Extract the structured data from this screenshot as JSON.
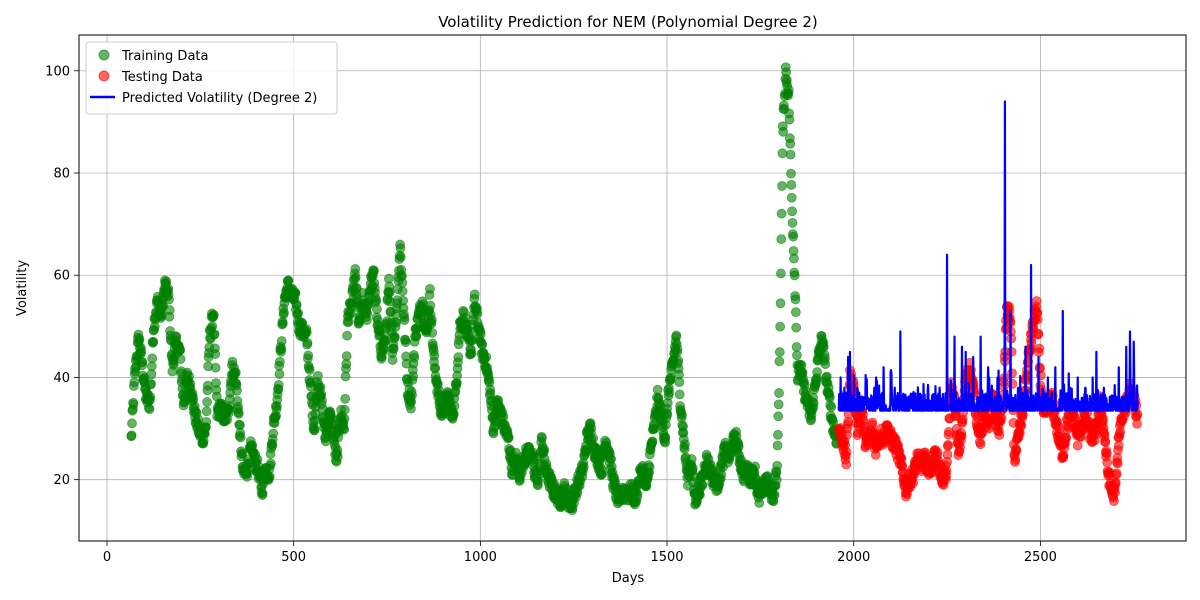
{
  "chart_data": {
    "type": "scatter",
    "title": "Volatility Prediction for NEM (Polynomial Degree 2)",
    "xlabel": "Days",
    "ylabel": "Volatility",
    "xlim": [
      -75,
      2890
    ],
    "ylim": [
      8,
      107
    ],
    "xticks": [
      0,
      500,
      1000,
      1500,
      2000,
      2500
    ],
    "yticks": [
      20,
      40,
      60,
      80,
      100
    ],
    "grid": true,
    "legend_position": "top-left",
    "colors": {
      "training": "#008000",
      "testing": "#ff0000",
      "predicted": "#0000ff"
    },
    "series": [
      {
        "name": "Training Data",
        "kind": "scatter",
        "x_range": [
          65,
          1955
        ],
        "anchors": [
          [
            65,
            28
          ],
          [
            75,
            41
          ],
          [
            85,
            48
          ],
          [
            95,
            42
          ],
          [
            105,
            36
          ],
          [
            115,
            35
          ],
          [
            125,
            50
          ],
          [
            135,
            55
          ],
          [
            145,
            52
          ],
          [
            155,
            58
          ],
          [
            165,
            56
          ],
          [
            175,
            42
          ],
          [
            185,
            47
          ],
          [
            195,
            45
          ],
          [
            205,
            35
          ],
          [
            215,
            40
          ],
          [
            225,
            38
          ],
          [
            235,
            33
          ],
          [
            245,
            30
          ],
          [
            255,
            28
          ],
          [
            265,
            30
          ],
          [
            275,
            48
          ],
          [
            285,
            53
          ],
          [
            295,
            33
          ],
          [
            305,
            34
          ],
          [
            315,
            32
          ],
          [
            325,
            33
          ],
          [
            335,
            42
          ],
          [
            345,
            40
          ],
          [
            355,
            30
          ],
          [
            365,
            21
          ],
          [
            375,
            22
          ],
          [
            385,
            26
          ],
          [
            395,
            24
          ],
          [
            405,
            22
          ],
          [
            415,
            18
          ],
          [
            425,
            22
          ],
          [
            435,
            21
          ],
          [
            445,
            30
          ],
          [
            455,
            35
          ],
          [
            465,
            45
          ],
          [
            475,
            55
          ],
          [
            485,
            58
          ],
          [
            495,
            56
          ],
          [
            505,
            55
          ],
          [
            515,
            50
          ],
          [
            525,
            49
          ],
          [
            535,
            48
          ],
          [
            545,
            38
          ],
          [
            555,
            30
          ],
          [
            565,
            40
          ],
          [
            575,
            35
          ],
          [
            585,
            28
          ],
          [
            595,
            33
          ],
          [
            605,
            30
          ],
          [
            615,
            23
          ],
          [
            625,
            33
          ],
          [
            635,
            30
          ],
          [
            645,
            52
          ],
          [
            655,
            54
          ],
          [
            665,
            60
          ],
          [
            675,
            50
          ],
          [
            685,
            55
          ],
          [
            695,
            52
          ],
          [
            705,
            58
          ],
          [
            715,
            60
          ],
          [
            725,
            50
          ],
          [
            735,
            45
          ],
          [
            745,
            47
          ],
          [
            755,
            58
          ],
          [
            765,
            45
          ],
          [
            775,
            52
          ],
          [
            785,
            66
          ],
          [
            795,
            53
          ],
          [
            805,
            38
          ],
          [
            815,
            35
          ],
          [
            825,
            48
          ],
          [
            835,
            52
          ],
          [
            845,
            55
          ],
          [
            855,
            48
          ],
          [
            865,
            56
          ],
          [
            875,
            44
          ],
          [
            885,
            38
          ],
          [
            895,
            33
          ],
          [
            905,
            35
          ],
          [
            915,
            36
          ],
          [
            925,
            32
          ],
          [
            935,
            38
          ],
          [
            945,
            50
          ],
          [
            955,
            52
          ],
          [
            965,
            48
          ],
          [
            975,
            45
          ],
          [
            985,
            55
          ],
          [
            995,
            50
          ],
          [
            1005,
            45
          ],
          [
            1015,
            43
          ],
          [
            1025,
            38
          ],
          [
            1035,
            30
          ],
          [
            1045,
            35
          ],
          [
            1055,
            33
          ],
          [
            1065,
            30
          ],
          [
            1075,
            28
          ],
          [
            1085,
            22
          ],
          [
            1095,
            24
          ],
          [
            1105,
            21
          ],
          [
            1115,
            24
          ],
          [
            1125,
            25
          ],
          [
            1135,
            26
          ],
          [
            1145,
            21
          ],
          [
            1155,
            20
          ],
          [
            1165,
            28
          ],
          [
            1175,
            22
          ],
          [
            1185,
            20
          ],
          [
            1195,
            18
          ],
          [
            1205,
            17
          ],
          [
            1215,
            16
          ],
          [
            1225,
            18
          ],
          [
            1235,
            16
          ],
          [
            1245,
            15
          ],
          [
            1255,
            18
          ],
          [
            1265,
            20
          ],
          [
            1275,
            22
          ],
          [
            1285,
            28
          ],
          [
            1295,
            30
          ],
          [
            1305,
            26
          ],
          [
            1315,
            24
          ],
          [
            1325,
            22
          ],
          [
            1335,
            28
          ],
          [
            1345,
            25
          ],
          [
            1355,
            20
          ],
          [
            1365,
            17
          ],
          [
            1375,
            16
          ],
          [
            1385,
            18
          ],
          [
            1395,
            17
          ],
          [
            1405,
            18
          ],
          [
            1415,
            16
          ],
          [
            1425,
            20
          ],
          [
            1435,
            22
          ],
          [
            1445,
            18
          ],
          [
            1455,
            25
          ],
          [
            1465,
            30
          ],
          [
            1475,
            36
          ],
          [
            1485,
            32
          ],
          [
            1495,
            28
          ],
          [
            1505,
            38
          ],
          [
            1515,
            42
          ],
          [
            1525,
            48
          ],
          [
            1535,
            36
          ],
          [
            1545,
            28
          ],
          [
            1555,
            20
          ],
          [
            1565,
            24
          ],
          [
            1575,
            16
          ],
          [
            1585,
            18
          ],
          [
            1595,
            20
          ],
          [
            1605,
            24
          ],
          [
            1615,
            22
          ],
          [
            1625,
            20
          ],
          [
            1635,
            19
          ],
          [
            1645,
            22
          ],
          [
            1655,
            26
          ],
          [
            1665,
            24
          ],
          [
            1675,
            27
          ],
          [
            1685,
            28
          ],
          [
            1695,
            24
          ],
          [
            1705,
            21
          ],
          [
            1715,
            22
          ],
          [
            1725,
            20
          ],
          [
            1735,
            22
          ],
          [
            1745,
            16
          ],
          [
            1755,
            18
          ],
          [
            1765,
            20
          ],
          [
            1775,
            18
          ],
          [
            1785,
            17
          ],
          [
            1795,
            22
          ],
          [
            1802,
            45
          ],
          [
            1810,
            88
          ],
          [
            1818,
            100
          ],
          [
            1826,
            95
          ],
          [
            1834,
            75
          ],
          [
            1842,
            60
          ],
          [
            1850,
            40
          ],
          [
            1858,
            42
          ],
          [
            1866,
            38
          ],
          [
            1876,
            35
          ],
          [
            1886,
            32
          ],
          [
            1896,
            38
          ],
          [
            1906,
            44
          ],
          [
            1916,
            48
          ],
          [
            1926,
            40
          ],
          [
            1936,
            35
          ],
          [
            1946,
            30
          ],
          [
            1955,
            28
          ]
        ]
      },
      {
        "name": "Testing Data",
        "kind": "scatter",
        "x_range": [
          1960,
          2760
        ],
        "anchors": [
          [
            1960,
            30
          ],
          [
            1970,
            28
          ],
          [
            1980,
            24
          ],
          [
            1990,
            40
          ],
          [
            2000,
            38
          ],
          [
            2010,
            30
          ],
          [
            2020,
            35
          ],
          [
            2030,
            28
          ],
          [
            2040,
            27
          ],
          [
            2050,
            30
          ],
          [
            2060,
            26
          ],
          [
            2070,
            29
          ],
          [
            2080,
            28
          ],
          [
            2090,
            30
          ],
          [
            2100,
            28
          ],
          [
            2110,
            27
          ],
          [
            2120,
            25
          ],
          [
            2130,
            22
          ],
          [
            2140,
            18
          ],
          [
            2150,
            20
          ],
          [
            2160,
            21
          ],
          [
            2170,
            24
          ],
          [
            2180,
            23
          ],
          [
            2190,
            24
          ],
          [
            2200,
            22
          ],
          [
            2210,
            23
          ],
          [
            2220,
            25
          ],
          [
            2230,
            22
          ],
          [
            2240,
            20
          ],
          [
            2250,
            22
          ],
          [
            2260,
            38
          ],
          [
            2270,
            35
          ],
          [
            2280,
            25
          ],
          [
            2290,
            30
          ],
          [
            2300,
            40
          ],
          [
            2310,
            42
          ],
          [
            2320,
            38
          ],
          [
            2330,
            32
          ],
          [
            2340,
            28
          ],
          [
            2350,
            34
          ],
          [
            2360,
            30
          ],
          [
            2370,
            36
          ],
          [
            2380,
            32
          ],
          [
            2390,
            30
          ],
          [
            2400,
            36
          ],
          [
            2410,
            53
          ],
          [
            2420,
            52
          ],
          [
            2430,
            24
          ],
          [
            2440,
            28
          ],
          [
            2450,
            32
          ],
          [
            2460,
            38
          ],
          [
            2470,
            45
          ],
          [
            2480,
            50
          ],
          [
            2490,
            54
          ],
          [
            2500,
            40
          ],
          [
            2510,
            32
          ],
          [
            2520,
            34
          ],
          [
            2530,
            36
          ],
          [
            2540,
            32
          ],
          [
            2550,
            28
          ],
          [
            2560,
            25
          ],
          [
            2570,
            30
          ],
          [
            2580,
            34
          ],
          [
            2590,
            32
          ],
          [
            2600,
            28
          ],
          [
            2610,
            30
          ],
          [
            2620,
            33
          ],
          [
            2630,
            30
          ],
          [
            2640,
            28
          ],
          [
            2650,
            30
          ],
          [
            2660,
            35
          ],
          [
            2670,
            30
          ],
          [
            2680,
            22
          ],
          [
            2690,
            18
          ],
          [
            2700,
            17
          ],
          [
            2710,
            28
          ],
          [
            2720,
            33
          ],
          [
            2730,
            35
          ],
          [
            2740,
            38
          ],
          [
            2750,
            36
          ],
          [
            2760,
            32
          ]
        ]
      },
      {
        "name": "Predicted Volatility (Degree 2)",
        "kind": "line",
        "x_range": [
          1960,
          2760
        ],
        "baseline": 33.5,
        "spikes": [
          [
            1965,
            40
          ],
          [
            1975,
            38
          ],
          [
            1985,
            44
          ],
          [
            1990,
            45
          ],
          [
            2000,
            36
          ],
          [
            2010,
            38
          ],
          [
            2015,
            37
          ],
          [
            2025,
            36
          ],
          [
            2055,
            38
          ],
          [
            2060,
            40
          ],
          [
            2080,
            42
          ],
          [
            2110,
            38
          ],
          [
            2125,
            49
          ],
          [
            2150,
            35
          ],
          [
            2200,
            37
          ],
          [
            2230,
            38
          ],
          [
            2250,
            64
          ],
          [
            2270,
            48
          ],
          [
            2290,
            46
          ],
          [
            2300,
            45
          ],
          [
            2320,
            44
          ],
          [
            2340,
            48
          ],
          [
            2360,
            42
          ],
          [
            2385,
            40
          ],
          [
            2405,
            94
          ],
          [
            2420,
            53
          ],
          [
            2440,
            38
          ],
          [
            2460,
            46
          ],
          [
            2475,
            62
          ],
          [
            2495,
            44
          ],
          [
            2520,
            40
          ],
          [
            2540,
            42
          ],
          [
            2560,
            53
          ],
          [
            2580,
            38
          ],
          [
            2600,
            40
          ],
          [
            2620,
            38
          ],
          [
            2640,
            40
          ],
          [
            2650,
            45
          ],
          [
            2670,
            38
          ],
          [
            2690,
            36
          ],
          [
            2710,
            42
          ],
          [
            2730,
            46
          ],
          [
            2740,
            49
          ],
          [
            2750,
            47
          ],
          [
            2760,
            34
          ]
        ]
      }
    ]
  }
}
